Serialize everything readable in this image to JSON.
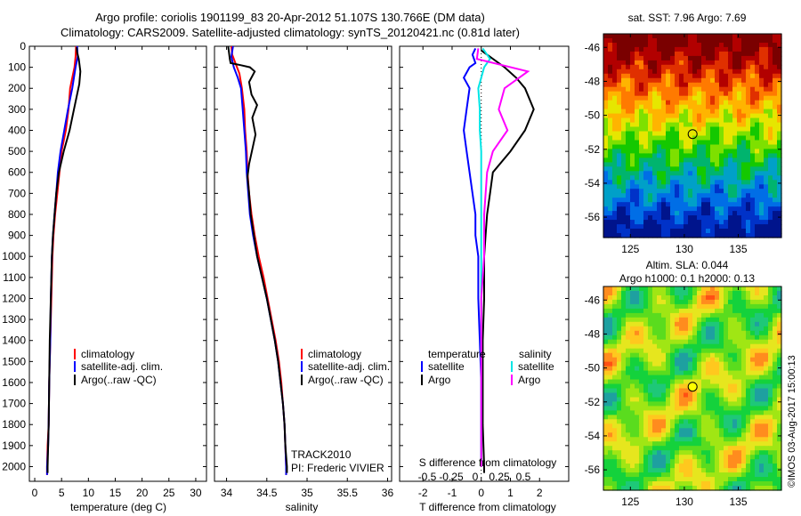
{
  "header": {
    "line1": "Argo profile: coriolis 1901199_83 20-Apr-2012 51.107S 130.766E (DM data)",
    "line2": "Climatology: CARS2009. Satellite-adjusted climatology: synTS_20120421.nc (0.81d later)"
  },
  "colors": {
    "climatology": "#ff0000",
    "satellite": "#0000ff",
    "argo": "#000000",
    "salinity_satellite": "#00e5e5",
    "salinity_argo": "#ff00ff"
  },
  "chart_data": [
    {
      "id": "temperature_profile",
      "type": "line",
      "xlabel": "temperature (deg C)",
      "ylabel": "",
      "xlim": [
        -1,
        32
      ],
      "ylim": [
        2070,
        0
      ],
      "xticks": [
        0,
        5,
        10,
        15,
        20,
        25,
        30
      ],
      "yticks": [
        0,
        100,
        200,
        300,
        400,
        500,
        600,
        700,
        800,
        900,
        1000,
        1100,
        1200,
        1300,
        1400,
        1500,
        1600,
        1700,
        1800,
        1900,
        2000
      ],
      "legend": [
        "climatology",
        "satellite-adj. clim.",
        "Argo(..raw -QC)"
      ],
      "series": [
        {
          "name": "climatology",
          "color": "#ff0000",
          "points": [
            [
              7.7,
              0
            ],
            [
              7.6,
              50
            ],
            [
              7.4,
              100
            ],
            [
              7.0,
              150
            ],
            [
              6.6,
              200
            ],
            [
              6.3,
              300
            ],
            [
              5.8,
              400
            ],
            [
              5.0,
              500
            ],
            [
              4.6,
              600
            ],
            [
              4.2,
              700
            ],
            [
              3.8,
              800
            ],
            [
              3.5,
              900
            ],
            [
              3.3,
              1000
            ],
            [
              3.1,
              1200
            ],
            [
              2.9,
              1400
            ],
            [
              2.7,
              1600
            ],
            [
              2.6,
              1800
            ],
            [
              2.4,
              1900
            ],
            [
              2.3,
              2000
            ],
            [
              2.3,
              2040
            ]
          ]
        },
        {
          "name": "satellite-adj. clim.",
          "color": "#0000ff",
          "points": [
            [
              7.9,
              0
            ],
            [
              8.0,
              50
            ],
            [
              7.6,
              100
            ],
            [
              7.0,
              200
            ],
            [
              6.2,
              300
            ],
            [
              5.5,
              400
            ],
            [
              4.8,
              500
            ],
            [
              4.3,
              600
            ],
            [
              4.0,
              700
            ],
            [
              3.7,
              800
            ],
            [
              3.4,
              900
            ],
            [
              3.2,
              1000
            ],
            [
              3.0,
              1200
            ],
            [
              2.9,
              1400
            ],
            [
              2.7,
              1600
            ],
            [
              2.6,
              1800
            ],
            [
              2.5,
              1900
            ],
            [
              2.3,
              2000
            ],
            [
              2.3,
              2040
            ]
          ]
        },
        {
          "name": "Argo(..raw -QC)",
          "color": "#000000",
          "points": [
            [
              7.8,
              5
            ],
            [
              7.9,
              30
            ],
            [
              8.2,
              60
            ],
            [
              8.5,
              120
            ],
            [
              8.3,
              180
            ],
            [
              7.8,
              240
            ],
            [
              7.3,
              300
            ],
            [
              6.5,
              400
            ],
            [
              5.4,
              500
            ],
            [
              4.5,
              600
            ],
            [
              4.0,
              700
            ],
            [
              3.7,
              800
            ],
            [
              3.4,
              900
            ],
            [
              3.2,
              1000
            ],
            [
              3.0,
              1200
            ],
            [
              2.8,
              1400
            ],
            [
              2.7,
              1600
            ],
            [
              2.6,
              1800
            ],
            [
              2.5,
              1900
            ],
            [
              2.4,
              2000
            ],
            [
              2.4,
              2030
            ]
          ]
        }
      ]
    },
    {
      "id": "salinity_profile",
      "type": "line",
      "xlabel": "salinity",
      "ylabel": "",
      "xlim": [
        33.85,
        36.05
      ],
      "ylim": [
        2070,
        0
      ],
      "xticks": [
        34,
        34.5,
        35,
        35.5,
        36
      ],
      "xticklabels": [
        "34",
        "34.5",
        "35",
        "35.5",
        "36"
      ],
      "legend": [
        "climatology",
        "satellite-adj. clim.",
        "Argo(..raw -QC)"
      ],
      "annotations": [
        "TRACK2010",
        "PI: Frederic VIVIER"
      ],
      "series": [
        {
          "name": "climatology",
          "color": "#ff0000",
          "points": [
            [
              34.06,
              0
            ],
            [
              34.07,
              40
            ],
            [
              34.12,
              90
            ],
            [
              34.16,
              130
            ],
            [
              34.19,
              200
            ],
            [
              34.22,
              300
            ],
            [
              34.23,
              400
            ],
            [
              34.25,
              500
            ],
            [
              34.26,
              600
            ],
            [
              34.28,
              700
            ],
            [
              34.31,
              800
            ],
            [
              34.35,
              900
            ],
            [
              34.4,
              1000
            ],
            [
              34.46,
              1100
            ],
            [
              34.51,
              1200
            ],
            [
              34.56,
              1300
            ],
            [
              34.61,
              1400
            ],
            [
              34.65,
              1500
            ],
            [
              34.68,
              1600
            ],
            [
              34.7,
              1700
            ],
            [
              34.72,
              1800
            ],
            [
              34.73,
              1900
            ],
            [
              34.74,
              2000
            ],
            [
              34.74,
              2040
            ]
          ]
        },
        {
          "name": "satellite-adj. clim.",
          "color": "#0000ff",
          "points": [
            [
              34.08,
              0
            ],
            [
              34.06,
              50
            ],
            [
              34.09,
              100
            ],
            [
              34.14,
              150
            ],
            [
              34.18,
              200
            ],
            [
              34.2,
              300
            ],
            [
              34.22,
              400
            ],
            [
              34.24,
              500
            ],
            [
              34.25,
              600
            ],
            [
              34.27,
              700
            ],
            [
              34.29,
              800
            ],
            [
              34.33,
              900
            ],
            [
              34.38,
              1000
            ],
            [
              34.44,
              1100
            ],
            [
              34.5,
              1200
            ],
            [
              34.55,
              1300
            ],
            [
              34.6,
              1400
            ],
            [
              34.64,
              1500
            ],
            [
              34.67,
              1600
            ],
            [
              34.7,
              1700
            ],
            [
              34.72,
              1800
            ],
            [
              34.73,
              1900
            ],
            [
              34.74,
              2000
            ],
            [
              34.74,
              2040
            ]
          ]
        },
        {
          "name": "Argo(..raw -QC)",
          "color": "#000000",
          "points": [
            [
              34.02,
              0
            ],
            [
              34.04,
              60
            ],
            [
              34.05,
              80
            ],
            [
              34.18,
              90
            ],
            [
              34.29,
              100
            ],
            [
              34.35,
              120
            ],
            [
              34.28,
              170
            ],
            [
              34.31,
              230
            ],
            [
              34.38,
              280
            ],
            [
              34.32,
              340
            ],
            [
              34.36,
              420
            ],
            [
              34.32,
              490
            ],
            [
              34.28,
              560
            ],
            [
              34.26,
              620
            ],
            [
              34.28,
              700
            ],
            [
              34.3,
              800
            ],
            [
              34.34,
              900
            ],
            [
              34.38,
              1000
            ],
            [
              34.44,
              1100
            ],
            [
              34.5,
              1200
            ],
            [
              34.55,
              1300
            ],
            [
              34.6,
              1400
            ],
            [
              34.64,
              1500
            ],
            [
              34.67,
              1600
            ],
            [
              34.7,
              1700
            ],
            [
              34.72,
              1800
            ],
            [
              34.73,
              1900
            ],
            [
              34.75,
              2000
            ],
            [
              34.75,
              2030
            ]
          ]
        }
      ]
    },
    {
      "id": "difference_profile",
      "type": "line",
      "xlabel": "T difference from climatology",
      "xlabel_top": "S difference from climatology",
      "xlim": [
        -2.8,
        3.0
      ],
      "ylim": [
        2070,
        0
      ],
      "xticks": [
        -2,
        -1,
        0,
        1,
        2
      ],
      "s_ticklabels": [
        "-0.5",
        "-0.25",
        "0",
        "0.25",
        "0.5"
      ],
      "legend": {
        "temperature_heading": "temperature",
        "salinity_heading": "salinity",
        "satellite": "satellite",
        "argo": "Argo"
      },
      "series": [
        {
          "name": "temperature satellite",
          "color": "#0000ff",
          "points": [
            [
              -0.2,
              10
            ],
            [
              -0.3,
              40
            ],
            [
              -0.2,
              80
            ],
            [
              -0.4,
              100
            ],
            [
              -0.6,
              150
            ],
            [
              -0.4,
              200
            ],
            [
              -0.5,
              300
            ],
            [
              -0.6,
              400
            ],
            [
              -0.5,
              500
            ],
            [
              -0.4,
              600
            ],
            [
              -0.3,
              700
            ],
            [
              -0.2,
              800
            ],
            [
              -0.2,
              900
            ],
            [
              -0.1,
              1000
            ],
            [
              -0.1,
              1200
            ],
            [
              -0.05,
              1400
            ],
            [
              0.0,
              1600
            ],
            [
              0.0,
              1800
            ],
            [
              0.0,
              2000
            ]
          ]
        },
        {
          "name": "temperature Argo",
          "color": "#000000",
          "points": [
            [
              0.0,
              20
            ],
            [
              0.3,
              50
            ],
            [
              0.8,
              100
            ],
            [
              1.2,
              150
            ],
            [
              1.5,
              200
            ],
            [
              1.8,
              300
            ],
            [
              1.5,
              400
            ],
            [
              1.0,
              500
            ],
            [
              0.4,
              600
            ],
            [
              0.3,
              700
            ],
            [
              0.2,
              800
            ],
            [
              0.15,
              900
            ],
            [
              0.1,
              1000
            ],
            [
              0.1,
              1200
            ],
            [
              0.05,
              1400
            ],
            [
              0.05,
              1600
            ],
            [
              0.05,
              1800
            ],
            [
              0.1,
              2000
            ],
            [
              0.1,
              2030
            ]
          ]
        },
        {
          "name": "salinity satellite",
          "color": "#00e5e5",
          "points": [
            [
              0.05,
              10
            ],
            [
              0.3,
              60
            ],
            [
              0.1,
              100
            ],
            [
              -0.1,
              200
            ],
            [
              -0.05,
              300
            ],
            [
              -0.05,
              400
            ],
            [
              0.0,
              500
            ],
            [
              0.0,
              800
            ],
            [
              0.0,
              1200
            ],
            [
              0.0,
              1600
            ],
            [
              0.0,
              2000
            ]
          ]
        },
        {
          "name": "salinity Argo",
          "color": "#ff00ff",
          "points": [
            [
              -0.1,
              10
            ],
            [
              -0.15,
              60
            ],
            [
              1.6,
              120
            ],
            [
              0.8,
              200
            ],
            [
              0.6,
              300
            ],
            [
              0.9,
              400
            ],
            [
              0.4,
              500
            ],
            [
              0.2,
              600
            ],
            [
              0.1,
              800
            ],
            [
              0.1,
              1000
            ],
            [
              0.0,
              1200
            ],
            [
              0.0,
              1600
            ],
            [
              0.0,
              2000
            ]
          ]
        }
      ]
    },
    {
      "id": "sst_map",
      "type": "heatmap",
      "title": "sat. SST: 7.96  Argo: 7.69",
      "xlim": [
        122.5,
        139
      ],
      "ylim": [
        -57.2,
        -45.2
      ],
      "xticks": [
        125,
        130,
        135
      ],
      "yticks": [
        -46,
        -48,
        -50,
        -52,
        -54,
        -56
      ],
      "marker": {
        "lon": 130.766,
        "lat": -51.107
      }
    },
    {
      "id": "sla_map",
      "type": "heatmap",
      "title": "Altim. SLA: 0.044",
      "subtitle": "Argo h1000: 0.1  h2000: 0.13",
      "xlim": [
        122.5,
        139
      ],
      "ylim": [
        -57.2,
        -45.2
      ],
      "xticks": [
        125,
        130,
        135
      ],
      "yticks": [
        -46,
        -48,
        -50,
        -52,
        -54,
        -56
      ],
      "marker": {
        "lon": 130.766,
        "lat": -51.107
      }
    }
  ],
  "footer": {
    "credit": "©IMOS 03-Aug-2017 15:00:13"
  }
}
